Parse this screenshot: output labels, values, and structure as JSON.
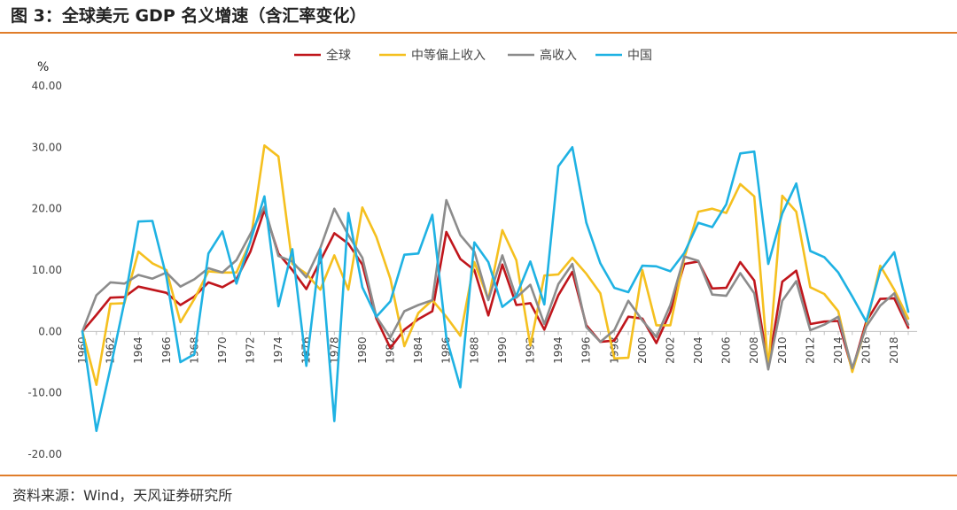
{
  "header": {
    "title": "图 3：全球美元 GDP 名义增速（含汇率变化）"
  },
  "footer": {
    "source": "资料来源：Wind，天风证券研究所"
  },
  "colors": {
    "rule": "#e07d2a"
  },
  "chart_data": {
    "type": "line",
    "ylabel": "%",
    "ylim": [
      -20,
      40
    ],
    "yticks": [
      "40.00",
      "30.00",
      "20.00",
      "10.00",
      "0.00",
      "-10.00",
      "-20.00"
    ],
    "ytick_values": [
      40,
      30,
      20,
      10,
      0,
      -10,
      -20
    ],
    "xtick_labels": [
      "1960",
      "1962",
      "1964",
      "1966",
      "1968",
      "1970",
      "1972",
      "1974",
      "1976",
      "1978",
      "1980",
      "1982",
      "1984",
      "1986",
      "1988",
      "1990",
      "1992",
      "1994",
      "1996",
      "1998",
      "2000",
      "2002",
      "2004",
      "2006",
      "2008",
      "2010",
      "2012",
      "2014",
      "2016",
      "2018"
    ],
    "x": [
      1960,
      1961,
      1962,
      1963,
      1964,
      1965,
      1966,
      1967,
      1968,
      1969,
      1970,
      1971,
      1972,
      1973,
      1974,
      1975,
      1976,
      1977,
      1978,
      1979,
      1980,
      1981,
      1982,
      1983,
      1984,
      1985,
      1986,
      1987,
      1988,
      1989,
      1990,
      1991,
      1992,
      1993,
      1994,
      1995,
      1996,
      1997,
      1998,
      1999,
      2000,
      2001,
      2002,
      2003,
      2004,
      2005,
      2006,
      2007,
      2008,
      2009,
      2010,
      2011,
      2012,
      2013,
      2014,
      2015,
      2016,
      2017,
      2018,
      2019
    ],
    "grid": false,
    "legend_position": "top-center",
    "series": [
      {
        "name": "全球",
        "color": "#c0161c",
        "values": [
          0,
          2.7,
          5.5,
          5.6,
          7.3,
          6.8,
          6.3,
          4.3,
          5.7,
          8.0,
          7.2,
          8.5,
          13.0,
          19.8,
          12.7,
          10.0,
          6.9,
          11.5,
          16.0,
          14.3,
          10.9,
          2.1,
          -2.7,
          0.3,
          2.0,
          3.3,
          16.2,
          11.8,
          10.0,
          2.6,
          10.9,
          4.3,
          4.6,
          0.3,
          5.9,
          9.7,
          1.0,
          -1.7,
          -1.5,
          2.4,
          2.1,
          -1.9,
          3.2,
          11.0,
          11.4,
          7.0,
          7.1,
          11.3,
          8.3,
          -5.8,
          8.1,
          9.9,
          1.2,
          1.6,
          1.7,
          -6.3,
          1.6,
          5.3,
          5.4,
          0.6
        ]
      },
      {
        "name": "中等偏上收入",
        "color": "#f5c01f",
        "values": [
          0,
          -8.7,
          4.5,
          4.6,
          13.0,
          11.1,
          10.0,
          1.5,
          5.3,
          9.8,
          9.6,
          9.6,
          14.6,
          30.3,
          28.5,
          11.0,
          9.4,
          6.8,
          12.4,
          6.8,
          20.2,
          15.4,
          8.6,
          -2.4,
          3.0,
          5.1,
          2.4,
          -0.7,
          11.3,
          5.2,
          16.5,
          11.6,
          -2.3,
          9.1,
          9.3,
          12.0,
          9.4,
          6.2,
          -4.4,
          -4.3,
          10.0,
          1.0,
          1.0,
          12.0,
          19.5,
          20.0,
          19.3,
          24.0,
          22.0,
          -6.0,
          22.1,
          19.5,
          7.2,
          6.1,
          3.3,
          -6.6,
          1.0,
          10.7,
          6.8,
          2.1
        ]
      },
      {
        "name": "高收入",
        "color": "#8c8c8c",
        "values": [
          0,
          5.9,
          8.0,
          7.8,
          9.2,
          8.6,
          9.6,
          7.3,
          8.5,
          10.3,
          9.6,
          11.6,
          15.9,
          20.3,
          12.3,
          11.4,
          8.8,
          13.6,
          20.0,
          15.7,
          12.0,
          2.4,
          -1.0,
          3.3,
          4.3,
          5.1,
          21.4,
          15.7,
          13.0,
          5.1,
          12.4,
          5.5,
          7.6,
          1.2,
          7.7,
          11.0,
          0.7,
          -1.7,
          0.2,
          5.0,
          1.8,
          -0.9,
          4.3,
          12.2,
          11.5,
          6.0,
          5.8,
          9.5,
          6.2,
          -6.2,
          5.0,
          8.2,
          0.2,
          1.1,
          2.4,
          -6.0,
          0.8,
          4.2,
          6.2,
          1.1
        ]
      },
      {
        "name": "中国",
        "color": "#1fb2e3",
        "values": [
          0,
          -16.2,
          -6.0,
          4.8,
          17.9,
          18.0,
          8.9,
          -5.0,
          -3.7,
          12.7,
          16.3,
          7.8,
          14.7,
          22.0,
          4.1,
          13.4,
          -5.6,
          13.4,
          -14.6,
          19.3,
          7.2,
          2.4,
          4.9,
          12.5,
          12.7,
          19.0,
          -1.0,
          -9.1,
          14.5,
          11.3,
          4.0,
          5.8,
          11.4,
          4.4,
          26.9,
          30.0,
          17.7,
          11.1,
          7.1,
          6.4,
          10.7,
          10.6,
          9.8,
          12.8,
          17.7,
          17.0,
          20.7,
          29.0,
          29.3,
          11.0,
          19.2,
          24.1,
          13.1,
          12.1,
          9.6,
          5.7,
          1.6,
          9.9,
          12.9,
          3.2
        ]
      }
    ]
  }
}
